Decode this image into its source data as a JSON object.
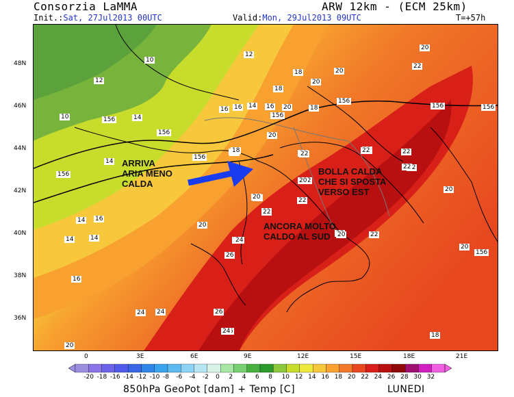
{
  "header": {
    "org": "Consorzia LaMMA",
    "model": "ARW 12km - (ECM 25km)",
    "init_label": "Init.:",
    "init_value": "Sat, 27Jul2013 00UTC",
    "valid_label": "Valid:",
    "valid_value": "Mon, 29Jul2013 09UTC",
    "step": "T=+57h"
  },
  "lat_labels": [
    "48N",
    "46N",
    "44N",
    "42N",
    "40N",
    "38N",
    "36N"
  ],
  "lon_labels": [
    "0",
    "3E",
    "6E",
    "9E",
    "12E",
    "15E",
    "18E",
    "21E"
  ],
  "colorbar": {
    "ticks": [
      "-20",
      "-18",
      "-16",
      "-14",
      "-12",
      "-10",
      "-8",
      "-6",
      "-4",
      "-2",
      "0",
      "2",
      "4",
      "6",
      "8",
      "10",
      "12",
      "14",
      "16",
      "18",
      "20",
      "22",
      "24",
      "26",
      "28",
      "30",
      "32"
    ],
    "colors": [
      "#9c8ee0",
      "#8a74e8",
      "#6c64e8",
      "#4f5be8",
      "#3866e4",
      "#2f85e8",
      "#3aa3ee",
      "#5cbaf0",
      "#8cd2f4",
      "#b6e6f2",
      "#d8f4e8",
      "#a8e6a4",
      "#78d070",
      "#48b040",
      "#2c9a2c",
      "#8cc83c",
      "#c8dc2c",
      "#ece83c",
      "#f8c83c",
      "#f8a030",
      "#f07828",
      "#e84820",
      "#d82018",
      "#b81010",
      "#900808",
      "#a01070",
      "#d020c0",
      "#f060e0"
    ]
  },
  "footer": {
    "caption": "850hPa GeoPot [dam] + Temp [C]",
    "day": "LUNEDI"
  },
  "annotations": [
    {
      "id": "arriva",
      "text": "ARRIVA\nARIA MENO\nCALDA"
    },
    {
      "id": "bolla",
      "text": "BOLLA CALDA\nCHE SI SPOSTA\nVERSO EST"
    },
    {
      "id": "ancora",
      "text": "ANCORA MOLTO\nCALDO AL SUD"
    }
  ],
  "contour_labels": [
    "10",
    "12",
    "10",
    "14",
    "12",
    "156",
    "156",
    "14",
    "156",
    "12",
    "14",
    "16",
    "14",
    "16",
    "14",
    "16",
    "16",
    "16",
    "14",
    "18",
    "18",
    "20",
    "20",
    "22",
    "20",
    "18",
    "20",
    "156",
    "156",
    "156",
    "156",
    "20",
    "22",
    "22",
    "20",
    "20",
    "22",
    "24",
    "22",
    "22",
    "22",
    "20",
    "22",
    "20",
    "24",
    "24",
    "26",
    "26",
    "24",
    "26",
    "24",
    "20",
    "18",
    "20",
    "156",
    "22",
    "22",
    "20",
    "22",
    "22",
    "20",
    "156",
    "22",
    "22",
    "20",
    "18",
    "20",
    "24",
    "22",
    "20"
  ]
}
